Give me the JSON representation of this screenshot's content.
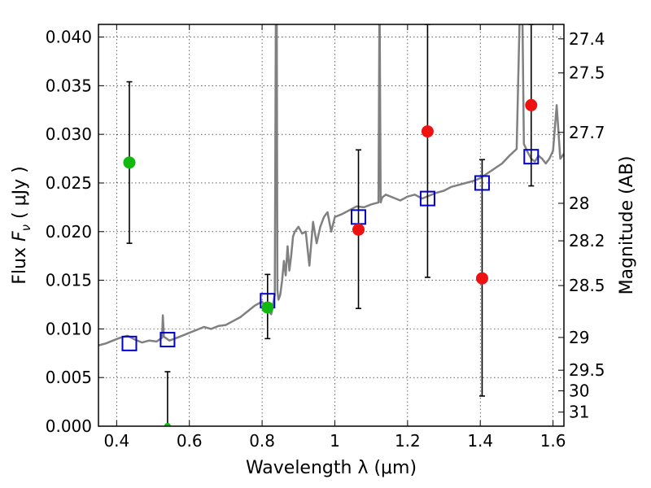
{
  "chart_data": {
    "type": "scatter",
    "xlabel": "Wavelength  λ (μm)",
    "ylabel_prefix": "Flux ",
    "ylabel_var": "F",
    "ylabel_sub": "ν",
    "ylabel_unit": " ( μJy )",
    "y2label": "Magnitude (AB)",
    "xlim": [
      0.35,
      1.63
    ],
    "ylim": [
      0.0,
      0.0413
    ],
    "x_ticks": [
      0.4,
      0.6,
      0.8,
      1.0,
      1.2,
      1.4,
      1.6
    ],
    "x_tick_labels": [
      "0.4",
      "0.6",
      "0.8",
      "1",
      "1.2",
      "1.4",
      "1.6"
    ],
    "y_ticks": [
      0.0,
      0.005,
      0.01,
      0.015,
      0.02,
      0.025,
      0.03,
      0.035,
      0.04
    ],
    "y_tick_labels": [
      "0.000",
      "0.005",
      "0.010",
      "0.015",
      "0.020",
      "0.025",
      "0.030",
      "0.035",
      "0.040"
    ],
    "mag_ticks": [
      27.4,
      27.5,
      27.7,
      28,
      28.2,
      28.5,
      29,
      29.5,
      30,
      31
    ],
    "mag_tick_labels": [
      "27.4",
      "27.5",
      "27.7",
      "28",
      "28.2",
      "28.5",
      "29",
      "29.5",
      "30",
      "31"
    ],
    "grid": true,
    "colors": {
      "model_line": "#808080",
      "model_photometry": "#0000cc",
      "detection": "#10b810",
      "non_detection": "#ee1111",
      "errorbar": "#000000"
    },
    "series": [
      {
        "type": "line",
        "x": [
          0.35,
          0.37,
          0.39,
          0.41,
          0.43,
          0.45,
          0.47,
          0.49,
          0.51,
          0.525,
          0.527,
          0.53,
          0.545,
          0.56,
          0.58,
          0.6,
          0.62,
          0.64,
          0.66,
          0.68,
          0.7,
          0.72,
          0.74,
          0.76,
          0.78,
          0.8,
          0.81,
          0.82,
          0.825,
          0.83,
          0.835,
          0.838,
          0.84,
          0.842,
          0.845,
          0.85,
          0.855,
          0.86,
          0.865,
          0.87,
          0.875,
          0.88,
          0.885,
          0.89,
          0.9,
          0.91,
          0.92,
          0.93,
          0.94,
          0.95,
          0.96,
          0.97,
          0.98,
          0.99,
          1.0,
          1.02,
          1.04,
          1.06,
          1.08,
          1.1,
          1.12,
          1.123,
          1.126,
          1.13,
          1.14,
          1.16,
          1.18,
          1.2,
          1.22,
          1.24,
          1.26,
          1.28,
          1.3,
          1.32,
          1.34,
          1.36,
          1.38,
          1.4,
          1.42,
          1.44,
          1.46,
          1.48,
          1.5,
          1.51,
          1.515,
          1.52,
          1.53,
          1.54,
          1.55,
          1.56,
          1.57,
          1.58,
          1.59,
          1.6,
          1.61,
          1.62,
          1.63
        ],
        "y": [
          0.0083,
          0.0085,
          0.0088,
          0.0091,
          0.0093,
          0.0089,
          0.0086,
          0.0088,
          0.0087,
          0.0091,
          0.0114,
          0.0092,
          0.0088,
          0.009,
          0.0093,
          0.0096,
          0.0099,
          0.0102,
          0.01,
          0.0103,
          0.0104,
          0.0108,
          0.0112,
          0.0118,
          0.0124,
          0.0128,
          0.0122,
          0.0118,
          0.0115,
          0.0125,
          0.0135,
          0.045,
          0.045,
          0.014,
          0.013,
          0.0135,
          0.015,
          0.017,
          0.0155,
          0.0185,
          0.016,
          0.0175,
          0.0195,
          0.02,
          0.0205,
          0.0198,
          0.02,
          0.0165,
          0.021,
          0.0188,
          0.0205,
          0.0215,
          0.022,
          0.02,
          0.0215,
          0.0218,
          0.0222,
          0.0226,
          0.0225,
          0.0228,
          0.023,
          0.045,
          0.023,
          0.0235,
          0.0238,
          0.0235,
          0.0232,
          0.0236,
          0.0238,
          0.0234,
          0.0237,
          0.024,
          0.0242,
          0.0246,
          0.0248,
          0.025,
          0.0252,
          0.0255,
          0.026,
          0.0265,
          0.027,
          0.0278,
          0.0285,
          0.045,
          0.045,
          0.029,
          0.0282,
          0.0275,
          0.0272,
          0.0278,
          0.0275,
          0.027,
          0.0275,
          0.0283,
          0.033,
          0.0275,
          0.028
        ]
      },
      {
        "type": "model_photometry",
        "x": [
          0.435,
          0.54,
          0.815,
          1.065,
          1.255,
          1.405,
          1.54
        ],
        "y": [
          0.0085,
          0.0089,
          0.0129,
          0.0215,
          0.0234,
          0.025,
          0.0277
        ]
      },
      {
        "type": "detection",
        "x": [
          0.435,
          0.815
        ],
        "y": [
          0.0271,
          0.0122
        ],
        "yerr_low": [
          0.0188,
          0.009
        ],
        "yerr_high": [
          0.0354,
          0.0156
        ]
      },
      {
        "type": "non_detection",
        "x": [
          1.065,
          1.255,
          1.405,
          1.54
        ],
        "y": [
          0.0202,
          0.0303,
          0.0152,
          0.033
        ],
        "yerr_low": [
          0.0121,
          0.0153,
          0.0031,
          0.0247
        ],
        "yerr_high": [
          0.0284,
          0.0413,
          0.0274,
          0.0413
        ]
      },
      {
        "type": "upper_limit",
        "x": [
          0.54
        ],
        "y": [
          0.0
        ],
        "yerr_low": [
          0.0
        ],
        "yerr_high": [
          0.0056
        ]
      }
    ]
  }
}
